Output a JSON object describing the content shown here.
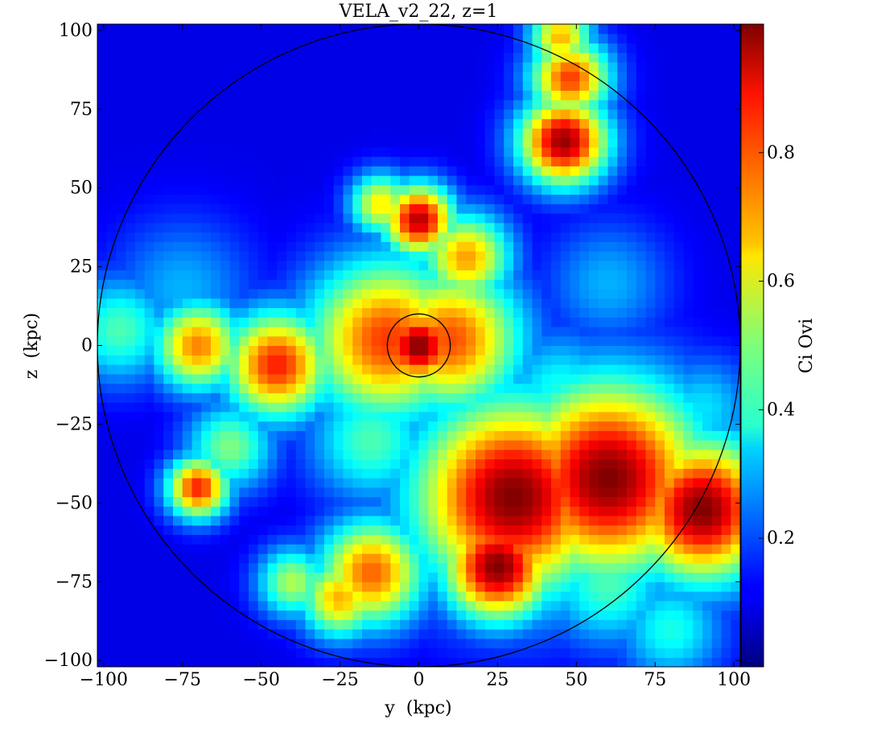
{
  "chart_data": {
    "type": "heatmap",
    "title": "VELA_v2_22, z=1",
    "xlabel": "y  (kpc)",
    "ylabel": "z  (kpc)",
    "xlim": [
      -102,
      102
    ],
    "ylim": [
      -102,
      102
    ],
    "x_ticks": [
      -100,
      -75,
      -50,
      -25,
      0,
      25,
      50,
      75,
      100
    ],
    "y_ticks": [
      -100,
      -75,
      -50,
      -25,
      0,
      25,
      50,
      75,
      100
    ],
    "x_tick_labels": [
      "−100",
      "−75",
      "−50",
      "−25",
      "0",
      "25",
      "50",
      "75",
      "100"
    ],
    "y_tick_labels": [
      "−100",
      "−75",
      "−50",
      "−25",
      "0",
      "25",
      "50",
      "75",
      "100"
    ],
    "colorbar": {
      "label": "Ci Ovi",
      "range": [
        0,
        1
      ],
      "colormap": "jet",
      "ticks": [
        0.2,
        0.4,
        0.6,
        0.8
      ],
      "tick_labels": [
        "0.2",
        "0.4",
        "0.6",
        "0.8"
      ]
    },
    "circles": [
      {
        "center": [
          0,
          0
        ],
        "radius": 102
      },
      {
        "center": [
          0,
          0
        ],
        "radius": 10
      }
    ],
    "grid": false,
    "features": [
      {
        "kind": "background",
        "value": 0.1
      },
      {
        "kind": "blob",
        "center": [
          0,
          0
        ],
        "radius": 9,
        "value": 1.0
      },
      {
        "kind": "blob",
        "center": [
          -10,
          2
        ],
        "radius": 18,
        "value": 0.82
      },
      {
        "kind": "blob",
        "center": [
          10,
          2
        ],
        "radius": 16,
        "value": 0.8
      },
      {
        "kind": "blob",
        "center": [
          -45,
          -6
        ],
        "radius": 12,
        "value": 0.85
      },
      {
        "kind": "blob",
        "center": [
          -70,
          0
        ],
        "radius": 10,
        "value": 0.75
      },
      {
        "kind": "blob",
        "center": [
          -95,
          5
        ],
        "radius": 12,
        "value": 0.45
      },
      {
        "kind": "blob",
        "center": [
          -75,
          18
        ],
        "radius": 16,
        "value": 0.3
      },
      {
        "kind": "blob",
        "center": [
          -60,
          -32
        ],
        "radius": 10,
        "value": 0.5
      },
      {
        "kind": "blob",
        "center": [
          -70,
          -45
        ],
        "radius": 7,
        "value": 0.85
      },
      {
        "kind": "blob",
        "center": [
          -15,
          -30
        ],
        "radius": 14,
        "value": 0.45
      },
      {
        "kind": "blob",
        "center": [
          0,
          40
        ],
        "radius": 8,
        "value": 0.95
      },
      {
        "kind": "blob",
        "center": [
          -12,
          45
        ],
        "radius": 7,
        "value": 0.65
      },
      {
        "kind": "blob",
        "center": [
          15,
          28
        ],
        "radius": 10,
        "value": 0.72
      },
      {
        "kind": "blob",
        "center": [
          46,
          65
        ],
        "radius": 10,
        "value": 0.98
      },
      {
        "kind": "blob",
        "center": [
          48,
          85
        ],
        "radius": 9,
        "value": 0.82
      },
      {
        "kind": "blob",
        "center": [
          45,
          98
        ],
        "radius": 7,
        "value": 0.7
      },
      {
        "kind": "blob",
        "center": [
          30,
          -48
        ],
        "radius": 22,
        "value": 1.0
      },
      {
        "kind": "blob",
        "center": [
          60,
          -42
        ],
        "radius": 22,
        "value": 1.0
      },
      {
        "kind": "blob",
        "center": [
          90,
          -52
        ],
        "radius": 16,
        "value": 1.0
      },
      {
        "kind": "blob",
        "center": [
          25,
          -70
        ],
        "radius": 12,
        "value": 1.0
      },
      {
        "kind": "blob",
        "center": [
          -15,
          -72
        ],
        "radius": 12,
        "value": 0.78
      },
      {
        "kind": "blob",
        "center": [
          -25,
          -80
        ],
        "radius": 9,
        "value": 0.7
      },
      {
        "kind": "blob",
        "center": [
          -40,
          -75
        ],
        "radius": 8,
        "value": 0.55
      },
      {
        "kind": "blob",
        "center": [
          60,
          -75
        ],
        "radius": 14,
        "value": 0.45
      },
      {
        "kind": "blob",
        "center": [
          80,
          -90
        ],
        "radius": 12,
        "value": 0.4
      },
      {
        "kind": "blob",
        "center": [
          45,
          -15
        ],
        "radius": 14,
        "value": 0.4
      },
      {
        "kind": "blob",
        "center": [
          60,
          20
        ],
        "radius": 14,
        "value": 0.3
      },
      {
        "kind": "blob",
        "center": [
          90,
          -20
        ],
        "radius": 12,
        "value": 0.35
      }
    ]
  }
}
